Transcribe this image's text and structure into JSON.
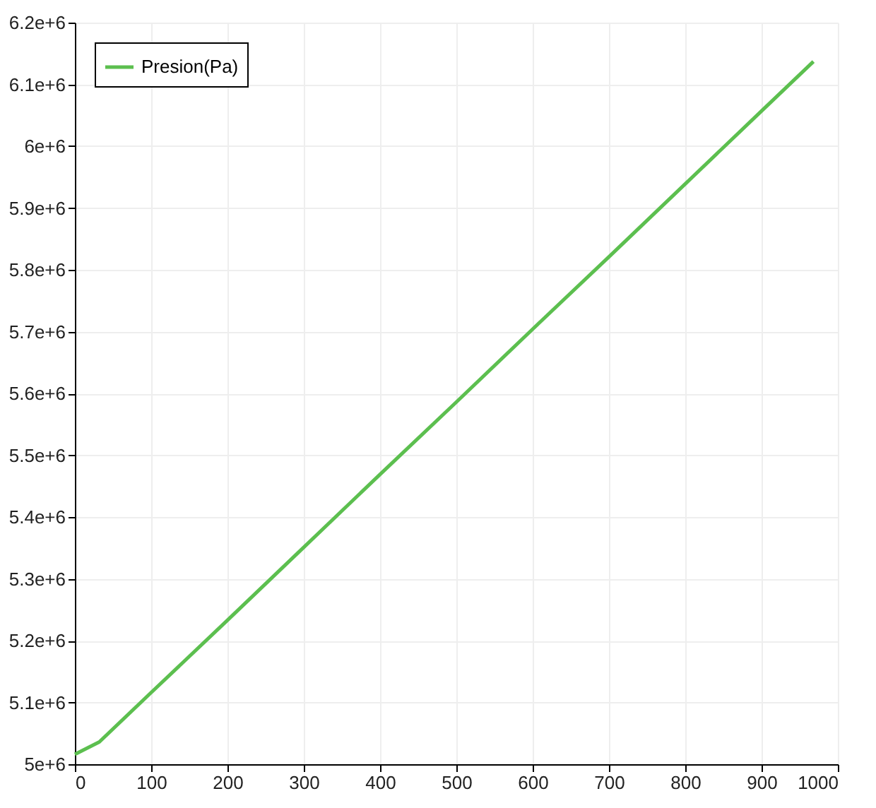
{
  "chart_data": {
    "type": "line",
    "x": [
      0,
      32,
      100,
      200,
      300,
      400,
      500,
      600,
      700,
      800,
      900,
      968
    ],
    "series": [
      {
        "name": "Presion(Pa)",
        "color": "#5cbf4f",
        "values": [
          5016000,
          5036000,
          5116000,
          5233000,
          5351000,
          5469000,
          5586000,
          5704000,
          5821000,
          5939000,
          6057000,
          6137000
        ]
      }
    ],
    "xlim": [
      0,
      1000
    ],
    "xticks": [
      0,
      100,
      200,
      300,
      400,
      500,
      600,
      700,
      800,
      900,
      1000
    ],
    "ylim": [
      5000000,
      6200000
    ],
    "yticks": [
      {
        "value": 5000000,
        "label": "5e+6"
      },
      {
        "value": 5100000,
        "label": "5.1e+6"
      },
      {
        "value": 5200000,
        "label": "5.2e+6"
      },
      {
        "value": 5300000,
        "label": "5.3e+6"
      },
      {
        "value": 5400000,
        "label": "5.4e+6"
      },
      {
        "value": 5500000,
        "label": "5.5e+6"
      },
      {
        "value": 5600000,
        "label": "5.6e+6"
      },
      {
        "value": 5700000,
        "label": "5.7e+6"
      },
      {
        "value": 5800000,
        "label": "5.8e+6"
      },
      {
        "value": 5900000,
        "label": "5.9e+6"
      },
      {
        "value": 6000000,
        "label": "6e+6"
      },
      {
        "value": 6100000,
        "label": "6.1e+6"
      },
      {
        "value": 6200000,
        "label": "6.2e+6"
      }
    ],
    "grid": true,
    "legend": "top left",
    "marker": "none",
    "line_style": "solid"
  }
}
